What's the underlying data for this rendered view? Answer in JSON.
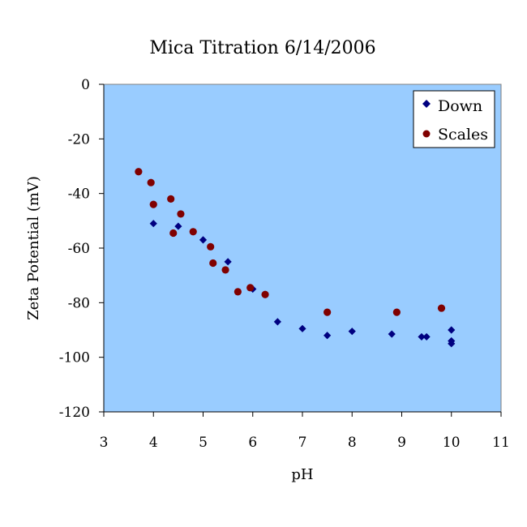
{
  "chart_data": {
    "type": "scatter",
    "title": "Mica Titration 6/14/2006",
    "xlabel": "pH",
    "ylabel": "Zeta Potential (mV)",
    "xlim": [
      3,
      11
    ],
    "ylim": [
      -120,
      0
    ],
    "xticks": [
      "3",
      "4",
      "5",
      "6",
      "7",
      "8",
      "9",
      "10",
      "11"
    ],
    "yticks": [
      "0",
      "-20",
      "-40",
      "-60",
      "-80",
      "-100",
      "-120"
    ],
    "grid": false,
    "legend_position": "top-right",
    "plot_background": "#99ccff",
    "series": [
      {
        "name": "Down",
        "marker": "diamond",
        "color": "#000080",
        "points": [
          [
            4.0,
            -51
          ],
          [
            4.5,
            -52
          ],
          [
            5.0,
            -57
          ],
          [
            5.5,
            -65
          ],
          [
            6.0,
            -75
          ],
          [
            6.5,
            -87
          ],
          [
            7.0,
            -89.5
          ],
          [
            7.5,
            -92
          ],
          [
            8.0,
            -90.5
          ],
          [
            8.8,
            -91.5
          ],
          [
            9.4,
            -92.5
          ],
          [
            9.5,
            -92.5
          ],
          [
            10.0,
            -90
          ],
          [
            10.0,
            -94
          ],
          [
            10.0,
            -95
          ]
        ]
      },
      {
        "name": "Scales",
        "marker": "circle",
        "color": "#800000",
        "points": [
          [
            3.7,
            -32
          ],
          [
            3.95,
            -36
          ],
          [
            4.0,
            -44
          ],
          [
            4.35,
            -42
          ],
          [
            4.4,
            -54.5
          ],
          [
            4.55,
            -47.5
          ],
          [
            4.8,
            -54
          ],
          [
            5.15,
            -59.5
          ],
          [
            5.2,
            -65.5
          ],
          [
            5.45,
            -68
          ],
          [
            5.7,
            -76
          ],
          [
            5.95,
            -74.5
          ],
          [
            6.25,
            -77
          ],
          [
            7.5,
            -83.5
          ],
          [
            8.9,
            -83.5
          ],
          [
            9.8,
            -82
          ]
        ]
      }
    ]
  }
}
